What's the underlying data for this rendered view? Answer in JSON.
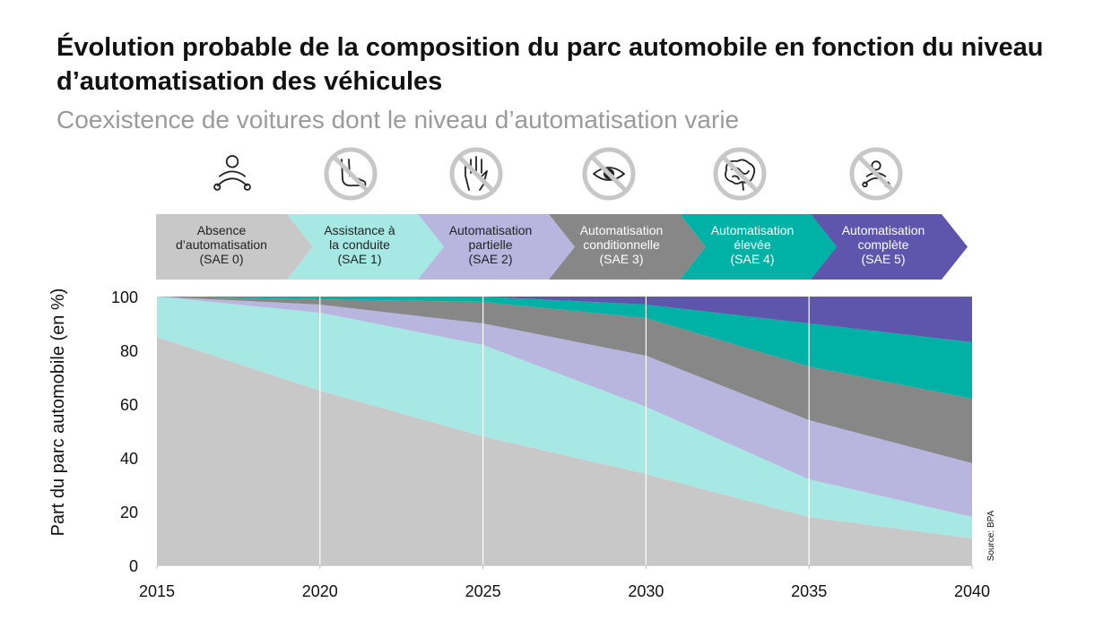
{
  "title": "Évolution probable de la composition du parc automobile en fonction du niveau d’automatisation des véhicules",
  "subtitle": "Coexistence de voitures dont le niveau d’automatisation varie",
  "source": "Source: BPA",
  "levels": [
    {
      "lines": [
        "Absence",
        "d’automatisation",
        "(SAE 0)"
      ],
      "color": "#c8c8c8",
      "icon": "driver-steering-wheel-icon"
    },
    {
      "lines": [
        "Assistance à",
        "la conduite",
        "(SAE 1)"
      ],
      "color": "#a6e9e4",
      "icon": "no-foot-icon"
    },
    {
      "lines": [
        "Automatisation",
        "partielle",
        "(SAE 2)"
      ],
      "color": "#b8b6df",
      "icon": "no-hands-icon"
    },
    {
      "lines": [
        "Automatisation",
        "conditionnelle",
        "(SAE 3)"
      ],
      "color": "#878787",
      "icon": "no-eyes-icon"
    },
    {
      "lines": [
        "Automatisation",
        "élevée",
        "(SAE 4)"
      ],
      "color": "#00b1a5",
      "icon": "no-brain-icon"
    },
    {
      "lines": [
        "Automatisation",
        "complète",
        "(SAE 5)"
      ],
      "color": "#5e55ac",
      "icon": "no-driver-icon"
    }
  ],
  "chart_data": {
    "type": "area",
    "stacked": true,
    "title": "Évolution probable de la composition du parc automobile en fonction du niveau d’automatisation des véhicules",
    "subtitle": "Coexistence de voitures dont le niveau d’automatisation varie",
    "xlabel": "",
    "ylabel": "Part du parc automobile (en %)",
    "x": [
      2015,
      2020,
      2025,
      2030,
      2035,
      2040
    ],
    "xticks": [
      "2015",
      "2020",
      "2025",
      "2030",
      "2035",
      "2040"
    ],
    "yticks": [
      "0",
      "20",
      "40",
      "60",
      "80",
      "100"
    ],
    "ylim": [
      0,
      100
    ],
    "grid": "vertical lines at each x tick",
    "series": [
      {
        "name": "SAE 0",
        "values": [
          85,
          65,
          48,
          34,
          18,
          10
        ]
      },
      {
        "name": "SAE 1",
        "values": [
          15,
          29,
          34,
          25,
          14,
          8
        ]
      },
      {
        "name": "SAE 2",
        "values": [
          0,
          3,
          8,
          19,
          22,
          20
        ]
      },
      {
        "name": "SAE 3",
        "values": [
          0,
          2,
          8,
          14,
          20,
          24
        ]
      },
      {
        "name": "SAE 4",
        "values": [
          0,
          1,
          2,
          5,
          16,
          21
        ]
      },
      {
        "name": "SAE 5",
        "values": [
          0,
          0,
          0,
          3,
          10,
          17
        ]
      }
    ]
  }
}
